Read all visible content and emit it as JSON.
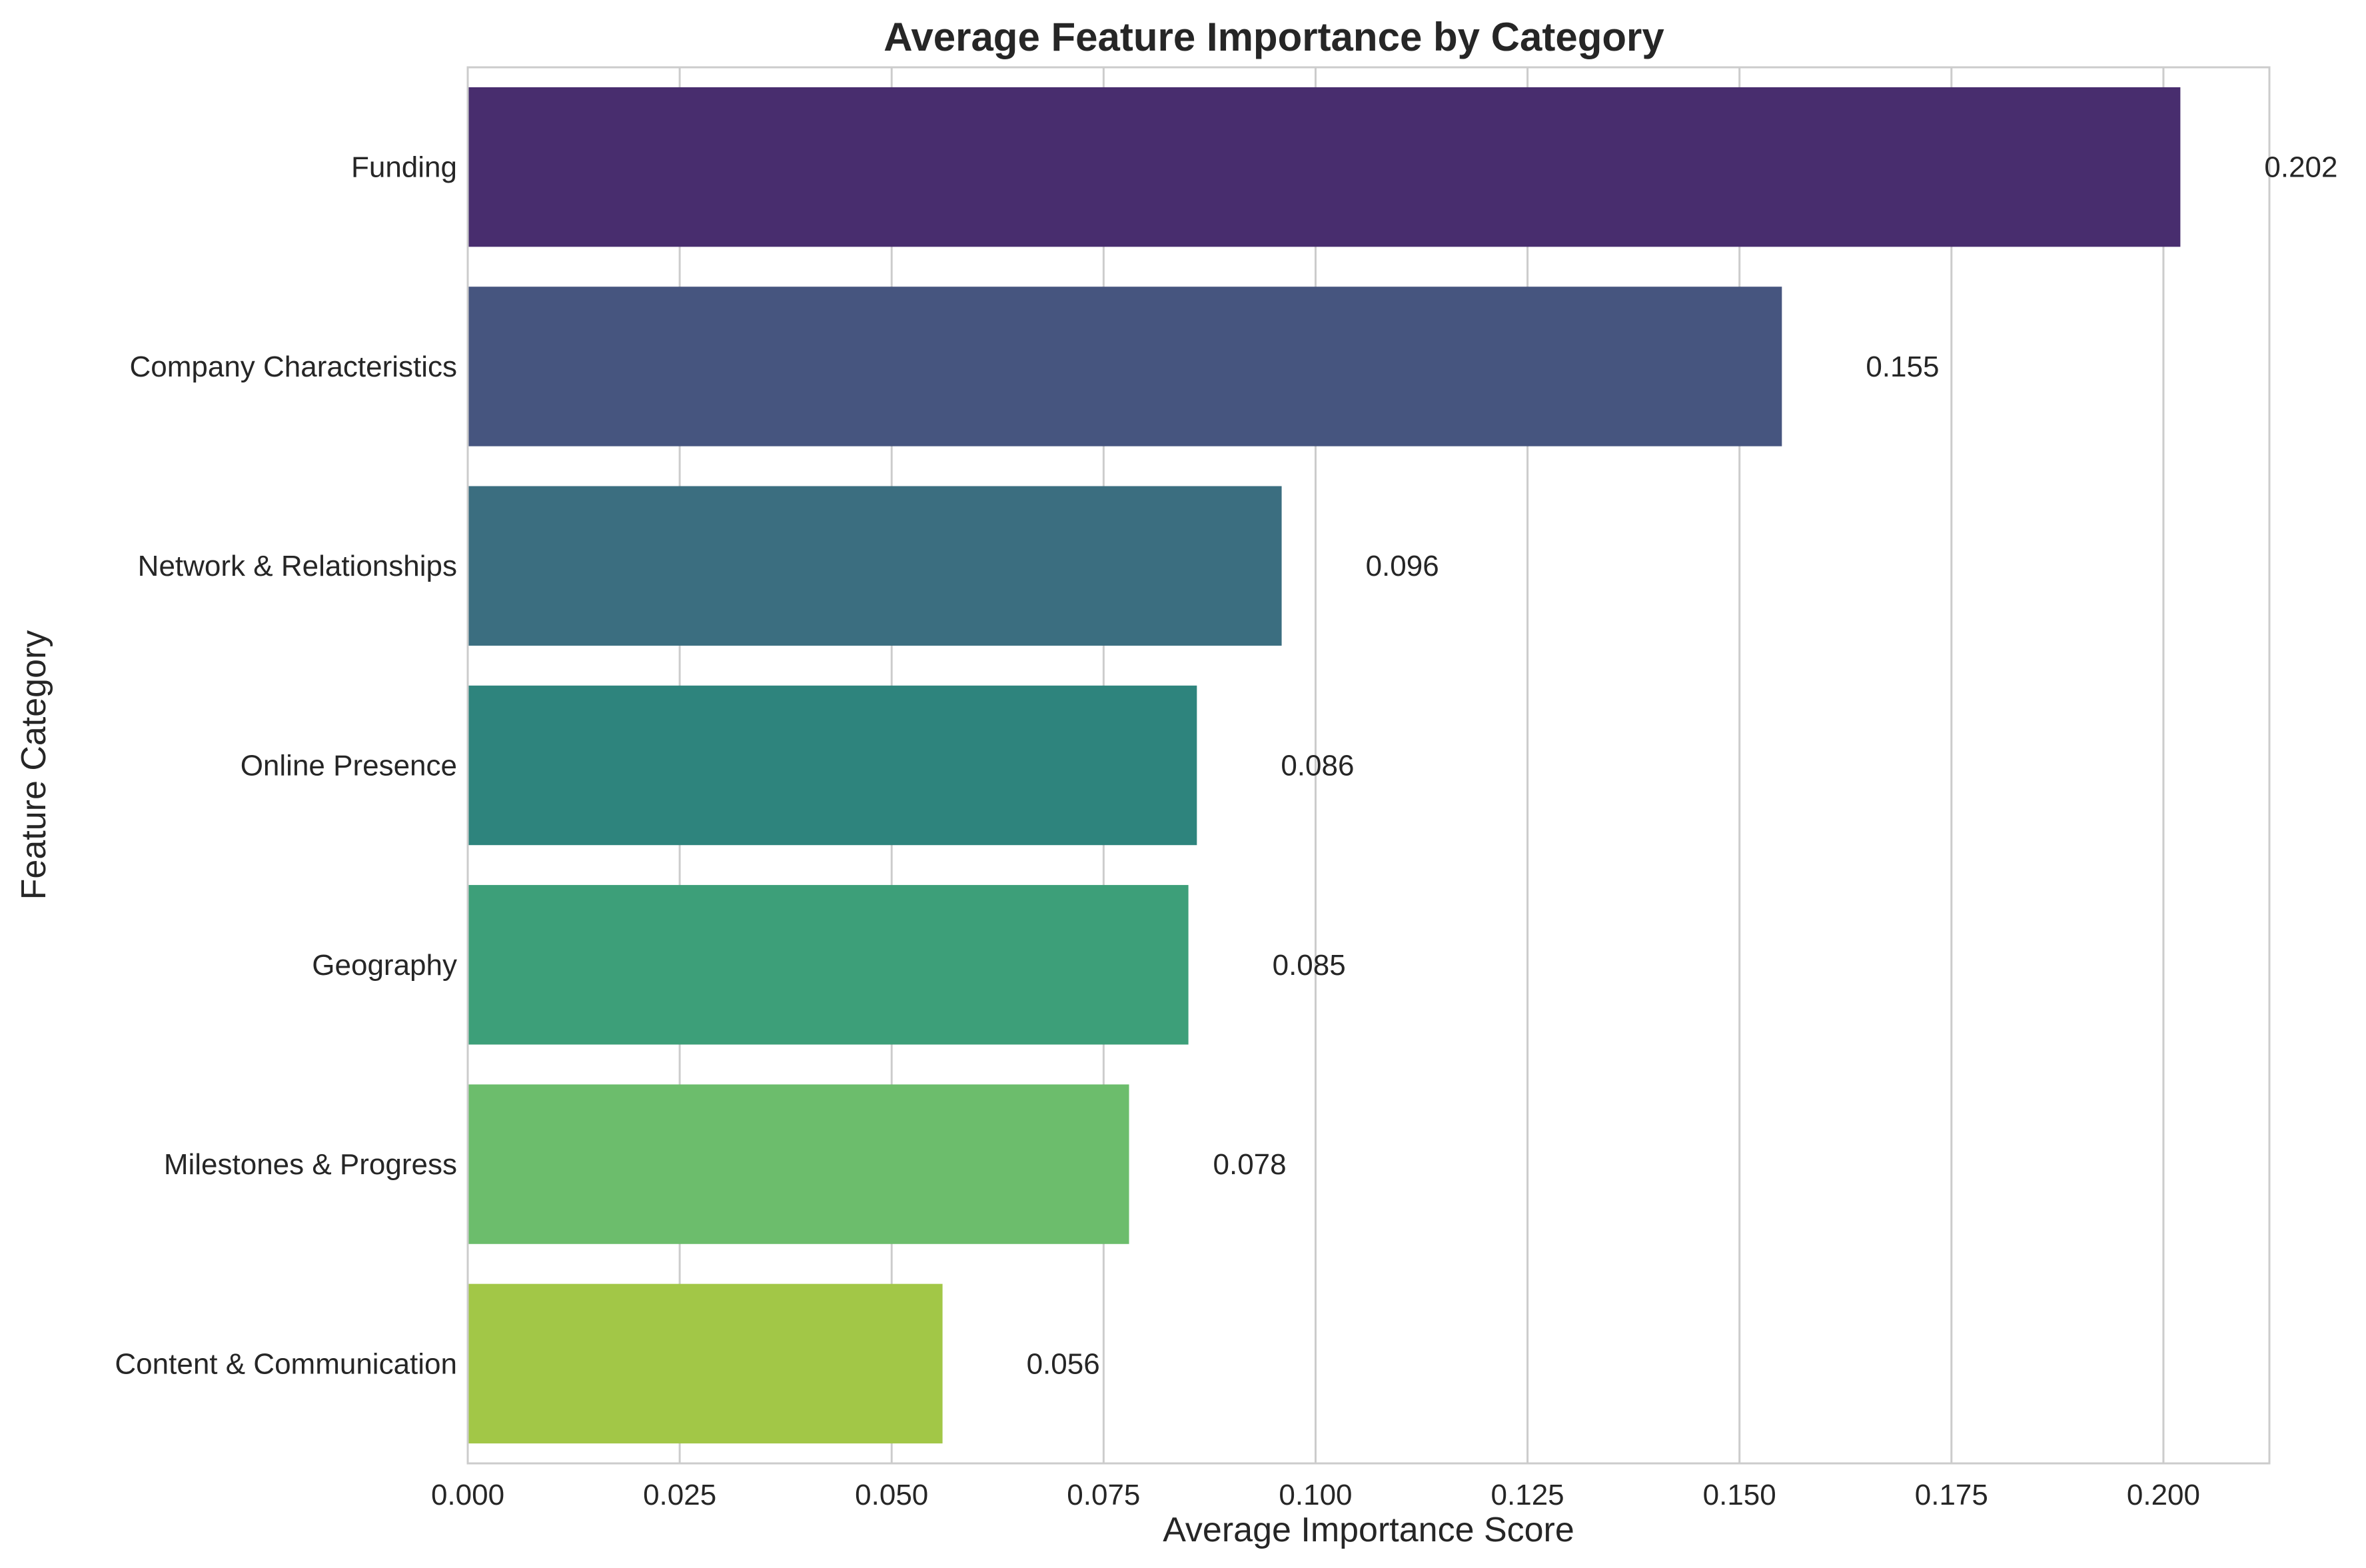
{
  "chart_data": {
    "type": "bar",
    "orientation": "horizontal",
    "title": "Average Feature Importance by Category",
    "xlabel": "Average Importance Score",
    "ylabel": "Feature Category",
    "categories": [
      "Funding",
      "Company Characteristics",
      "Network & Relationships",
      "Online Presence",
      "Geography",
      "Milestones & Progress",
      "Content & Communication"
    ],
    "values": [
      0.202,
      0.155,
      0.096,
      0.086,
      0.085,
      0.078,
      0.056
    ],
    "data_labels": [
      "0.202",
      "0.155",
      "0.096",
      "0.086",
      "0.085",
      "0.078",
      "0.056"
    ],
    "colors": [
      "#482d6e",
      "#46557f",
      "#3b6e80",
      "#2e847d",
      "#3d9f79",
      "#6cbd6c",
      "#a2c747"
    ],
    "xlim": [
      0,
      0.2125
    ],
    "xticks": [
      0.0,
      0.025,
      0.05,
      0.075,
      0.1,
      0.125,
      0.15,
      0.175,
      0.2
    ],
    "xtick_labels": [
      "0.000",
      "0.025",
      "0.050",
      "0.075",
      "0.100",
      "0.125",
      "0.150",
      "0.175",
      "0.200"
    ],
    "grid": "vertical",
    "legend": "none"
  }
}
